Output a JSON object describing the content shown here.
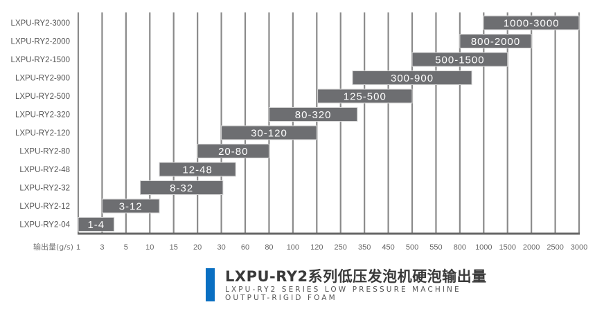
{
  "chart_data": {
    "type": "bar",
    "orientation": "horizontal-range",
    "xlabel": "输出量(g/s)",
    "x_ticks": [
      "1",
      "3",
      "5",
      "10",
      "15",
      "20",
      "30",
      "60",
      "80",
      "100",
      "120",
      "250",
      "350",
      "450",
      "500",
      "550",
      "800",
      "1000",
      "1500",
      "2000",
      "2500",
      "3000"
    ],
    "x_scale": "categorical (evenly spaced ticks)",
    "grid": "vertical lines on",
    "categories": [
      "LXPU-RY2-3000",
      "LXPU-RY2-2000",
      "LXPU-RY2-1500",
      "LXPU-RY2-900",
      "LXPU-RY2-500",
      "LXPU-RY2-320",
      "LXPU-RY2-120",
      "LXPU-RY2-80",
      "LXPU-RY2-48",
      "LXPU-RY2-32",
      "LXPU-RY2-12",
      "LXPU-RY2-04"
    ],
    "ranges": [
      {
        "min": 1000,
        "max": 3000,
        "label": "1000-3000"
      },
      {
        "min": 800,
        "max": 2000,
        "label": "800-2000"
      },
      {
        "min": 500,
        "max": 1500,
        "label": "500-1500"
      },
      {
        "min": 300,
        "max": 900,
        "label": "300-900"
      },
      {
        "min": 125,
        "max": 500,
        "label": "125-500"
      },
      {
        "min": 80,
        "max": 320,
        "label": "80-320"
      },
      {
        "min": 30,
        "max": 120,
        "label": "30-120"
      },
      {
        "min": 20,
        "max": 80,
        "label": "20-80"
      },
      {
        "min": 12,
        "max": 48,
        "label": "12-48"
      },
      {
        "min": 8,
        "max": 32,
        "label": "8-32"
      },
      {
        "min": 3,
        "max": 12,
        "label": "3-12"
      },
      {
        "min": 1,
        "max": 4,
        "label": "1-4"
      }
    ],
    "colors": {
      "bar": "#6d6e71",
      "grid": "#8a8a8a",
      "label": "#ffffff",
      "accent": "#0a6fc2"
    }
  },
  "title": {
    "main": "LXPU-RY2系列低压发泡机硬泡输出量",
    "sub_line1": "LXPU-RY2 SERIES LOW PRESSURE MACHINE",
    "sub_line2": "OUTPUT-RIGID FOAM"
  }
}
